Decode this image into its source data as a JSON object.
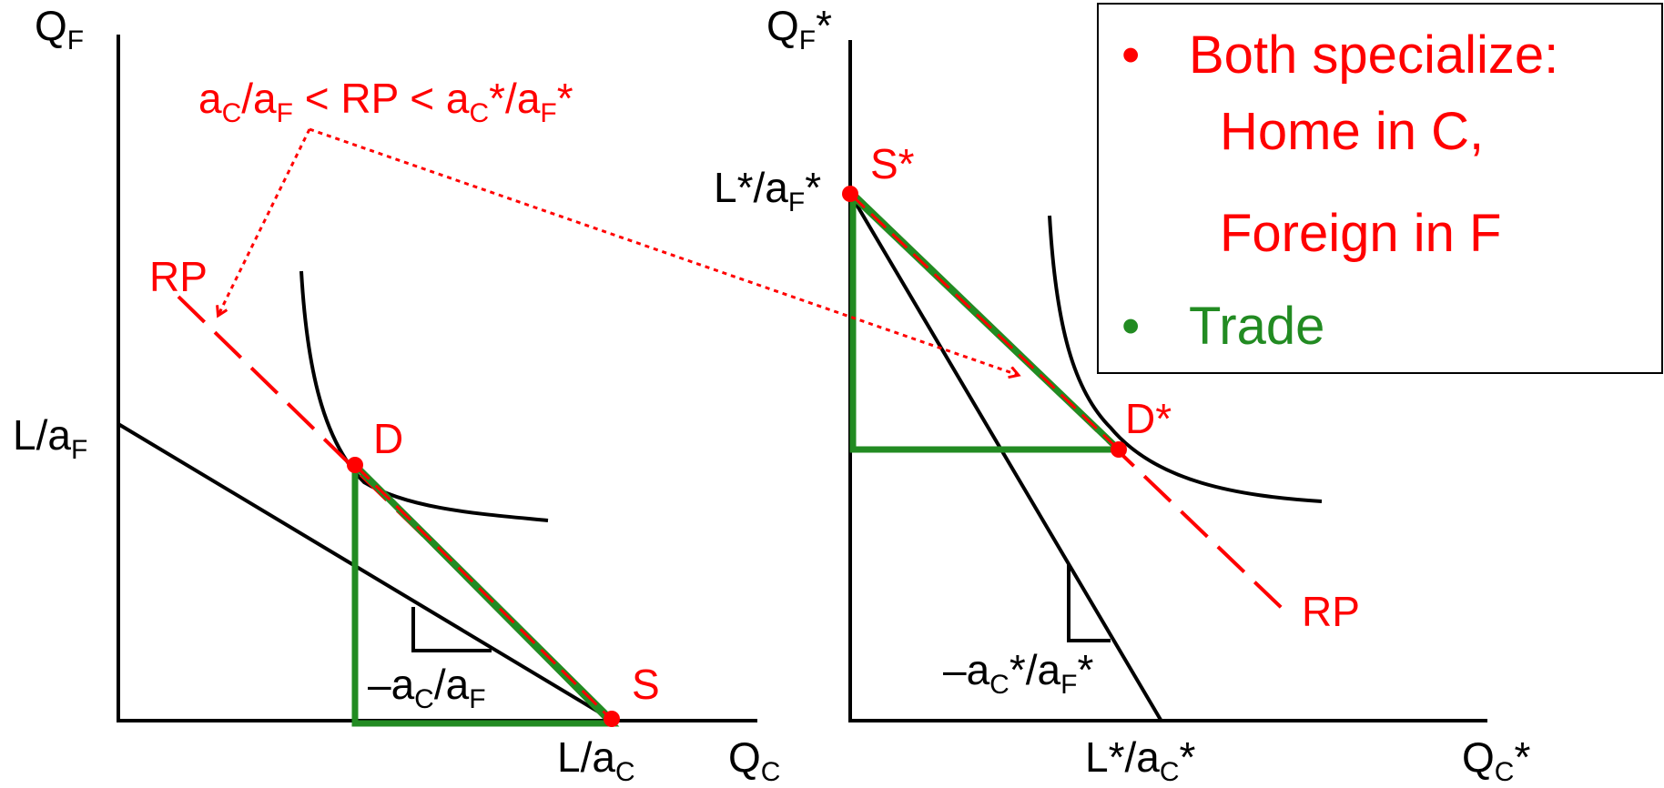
{
  "colors": {
    "axis": "#000000",
    "rp": "#ff0000",
    "trade": "#228b22",
    "curve": "#000000"
  },
  "home": {
    "y_axis_label": {
      "main": "Q",
      "sub": "F"
    },
    "x_axis_label": {
      "main": "Q",
      "sub": "C"
    },
    "y_intercept_label": {
      "main": "L/a",
      "sub": "F"
    },
    "x_intercept_label": {
      "main": "L/a",
      "sub": "C"
    },
    "slope_label": {
      "p1": "–a",
      "s1": "C",
      "p2": "/a",
      "s2": "F"
    },
    "rp_label": "RP",
    "point_d_label": "D",
    "point_s_label": "S"
  },
  "foreign": {
    "y_axis_label": {
      "main": "Q",
      "sub": "F",
      "suffix": "*"
    },
    "x_axis_label": {
      "main": "Q",
      "sub": "C",
      "suffix": "*"
    },
    "y_intercept_label": {
      "main": "L*/a",
      "sub": "F",
      "suffix": "*"
    },
    "x_intercept_label": {
      "main": "L*/a",
      "sub": "C",
      "suffix": "*"
    },
    "slope_label": {
      "p1": "–a",
      "s1": "C",
      "p2": "*/a",
      "s2": "F",
      "p3": "*"
    },
    "rp_label": "RP",
    "point_d_label": "D*",
    "point_s_label": "S*"
  },
  "condition": {
    "p1": "a",
    "s1": "C",
    "p2": "/a",
    "s2": "F",
    "p3": " < RP < a",
    "s3": "C",
    "p4": "*/a",
    "s4": "F",
    "p5": "*"
  },
  "legend": {
    "bullet": "•",
    "item1_lines": [
      "Both specialize:",
      "Home in C,",
      "Foreign in F"
    ],
    "item2": "Trade"
  }
}
